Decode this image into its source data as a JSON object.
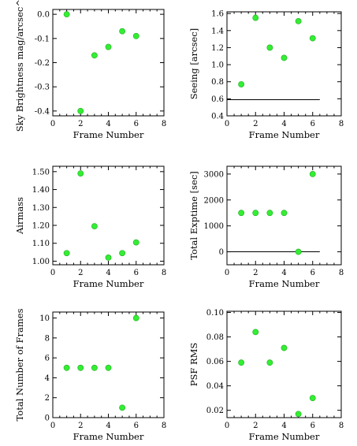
{
  "chart_data": [
    {
      "type": "scatter",
      "xlabel": "Frame Number",
      "ylabel": "Sky Brightness mag/arcsec^2",
      "xlim": [
        0,
        8
      ],
      "xticks": [
        0,
        2,
        4,
        6,
        8
      ],
      "x_tick_labels": [
        "0",
        "2",
        "4",
        "6",
        "8"
      ],
      "ylim": [
        -0.42,
        0.02
      ],
      "yticks": [
        0.0,
        -0.1,
        -0.2,
        -0.3,
        -0.4
      ],
      "y_tick_labels": [
        "0.0",
        "-0.1",
        "-0.2",
        "-0.3",
        "-0.4"
      ],
      "x": [
        1,
        2,
        3,
        4,
        5,
        6
      ],
      "y": [
        0.0,
        -0.4,
        -0.17,
        -0.135,
        -0.07,
        -0.09
      ],
      "color": "#33ee33"
    },
    {
      "type": "scatter",
      "xlabel": "Frame Number",
      "ylabel": "Seeing [arcsec]",
      "xlim": [
        0,
        8
      ],
      "xticks": [
        0,
        2,
        4,
        6,
        8
      ],
      "x_tick_labels": [
        "0",
        "2",
        "4",
        "6",
        "8"
      ],
      "ylim": [
        0.4,
        1.62
      ],
      "yticks": [
        0.4,
        0.6,
        0.8,
        1.0,
        1.2,
        1.4,
        1.6
      ],
      "y_tick_labels": [
        "0.4",
        "0.6",
        "0.8",
        "1.0",
        "1.2",
        "1.4",
        "1.6"
      ],
      "x": [
        1,
        2,
        3,
        4,
        5,
        6
      ],
      "y": [
        0.77,
        1.55,
        1.2,
        1.08,
        1.51,
        1.31
      ],
      "hline": {
        "y": 0.59,
        "xmin": 0,
        "xmax": 6.5
      },
      "color": "#33ee33"
    },
    {
      "type": "scatter",
      "xlabel": "Frame Number",
      "ylabel": "Airmass",
      "xlim": [
        0,
        8
      ],
      "xticks": [
        0,
        2,
        4,
        6,
        8
      ],
      "x_tick_labels": [
        "0",
        "2",
        "4",
        "6",
        "8"
      ],
      "ylim": [
        0.98,
        1.53
      ],
      "yticks": [
        1.0,
        1.1,
        1.2,
        1.3,
        1.4,
        1.5
      ],
      "y_tick_labels": [
        "1.00",
        "1.10",
        "1.20",
        "1.30",
        "1.40",
        "1.50"
      ],
      "x": [
        1,
        2,
        3,
        4,
        5,
        6
      ],
      "y": [
        1.045,
        1.49,
        1.195,
        1.02,
        1.045,
        1.105
      ],
      "color": "#33ee33"
    },
    {
      "type": "scatter",
      "xlabel": "Frame Number",
      "ylabel": "Total Exptime [sec]",
      "xlim": [
        0,
        8
      ],
      "xticks": [
        0,
        2,
        4,
        6,
        8
      ],
      "x_tick_labels": [
        "0",
        "2",
        "4",
        "6",
        "8"
      ],
      "ylim": [
        -500,
        3300
      ],
      "yticks": [
        0,
        1000,
        2000,
        3000
      ],
      "y_tick_labels": [
        "0",
        "1000",
        "2000",
        "3000"
      ],
      "x": [
        1,
        2,
        3,
        4,
        5,
        6
      ],
      "y": [
        1500,
        1500,
        1500,
        1500,
        0,
        3000
      ],
      "hline": {
        "y": 0,
        "xmin": 0,
        "xmax": 6.5
      },
      "color": "#33ee33"
    },
    {
      "type": "scatter",
      "xlabel": "Frame Number",
      "ylabel": "Total Number of Frames",
      "xlim": [
        0,
        8
      ],
      "xticks": [
        0,
        2,
        4,
        6,
        8
      ],
      "x_tick_labels": [
        "0",
        "2",
        "4",
        "6",
        "8"
      ],
      "ylim": [
        0,
        10.6
      ],
      "yticks": [
        0,
        2,
        4,
        6,
        8,
        10
      ],
      "y_tick_labels": [
        "0",
        "2",
        "4",
        "6",
        "8",
        "10"
      ],
      "x": [
        1,
        2,
        3,
        4,
        5,
        6
      ],
      "y": [
        5,
        5,
        5,
        5,
        1,
        10
      ],
      "color": "#33ee33"
    },
    {
      "type": "scatter",
      "xlabel": "Frame Number",
      "ylabel": "PSF RMS",
      "xlim": [
        0,
        8
      ],
      "xticks": [
        0,
        2,
        4,
        6,
        8
      ],
      "x_tick_labels": [
        "0",
        "2",
        "4",
        "6",
        "8"
      ],
      "ylim": [
        0.014,
        0.101
      ],
      "yticks": [
        0.02,
        0.04,
        0.06,
        0.08,
        0.1
      ],
      "y_tick_labels": [
        "0.02",
        "0.04",
        "0.06",
        "0.08",
        "0.10"
      ],
      "x": [
        1,
        2,
        3,
        4,
        5,
        6
      ],
      "y": [
        0.059,
        0.084,
        0.059,
        0.071,
        0.017,
        0.03
      ],
      "color": "#33ee33"
    }
  ]
}
